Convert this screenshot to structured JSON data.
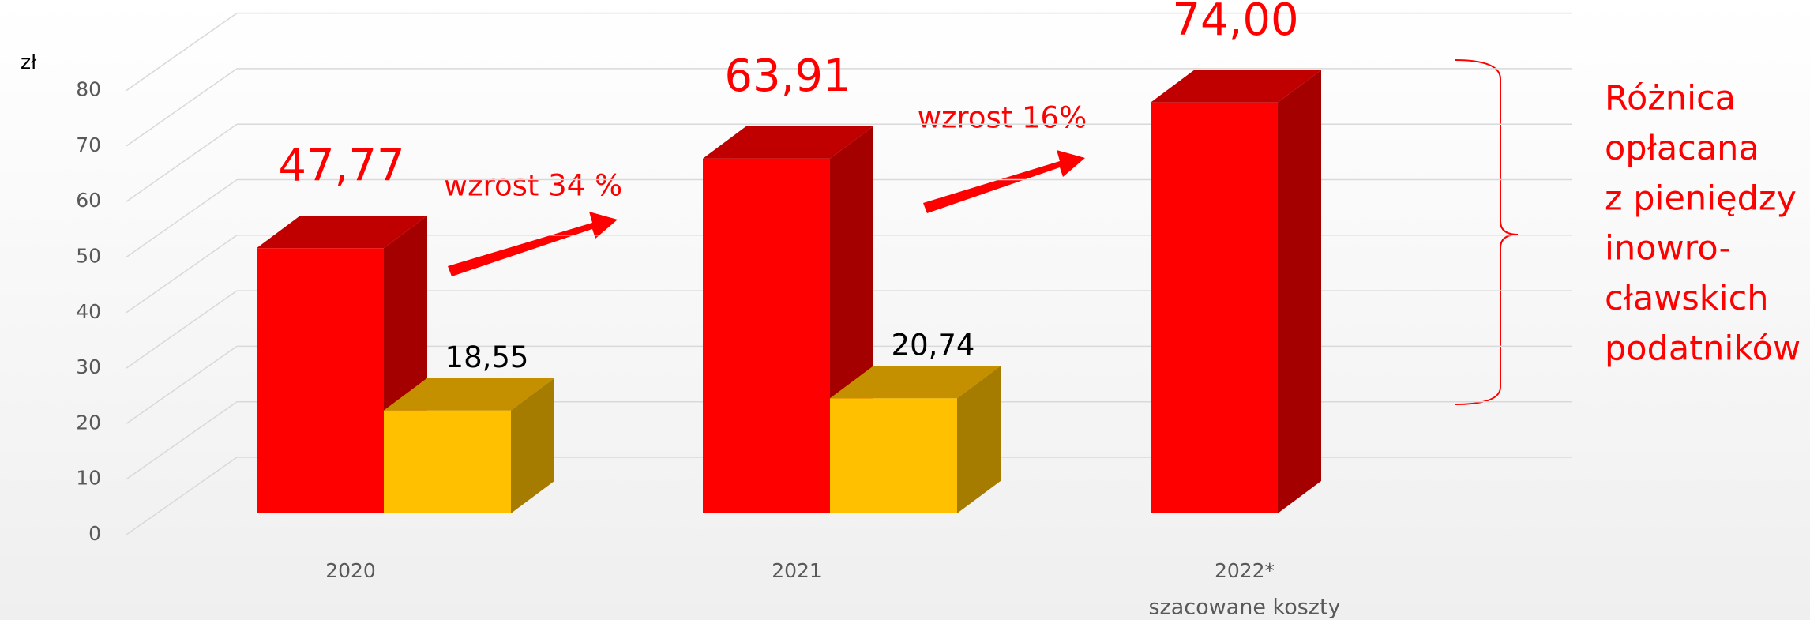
{
  "chart_data": {
    "type": "bar3d",
    "y_unit": "zł",
    "categories": [
      "2020",
      "2021",
      "2022*"
    ],
    "category_note": "szacowane koszty",
    "series": [
      {
        "color": "#ff0000",
        "side_color": "#a50000",
        "top_color": "#c00000",
        "values": [
          47.77,
          63.91,
          74.0
        ],
        "value_labels": [
          "47,77",
          "63,91",
          "74,00"
        ]
      },
      {
        "color": "#ffc000",
        "side_color": "#a67c00",
        "top_color": "#c49000",
        "values": [
          18.55,
          20.74,
          null
        ],
        "value_labels": [
          "18,55",
          "20,74",
          null
        ]
      }
    ],
    "ylim": [
      0,
      80
    ],
    "yticks": [
      0,
      10,
      20,
      30,
      40,
      50,
      60,
      70,
      80
    ],
    "grid": true,
    "annotations": [
      "wzrost 34 %",
      "wzrost 16%"
    ],
    "brace_text": [
      "Różnica",
      "opłacana",
      "z pieniędzy",
      "inowro-",
      "cławskich",
      "podatników"
    ]
  }
}
